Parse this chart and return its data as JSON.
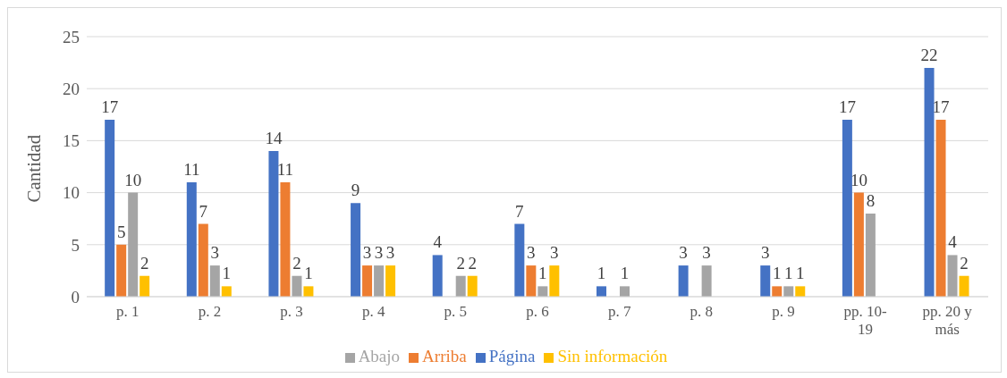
{
  "chart_data": {
    "type": "bar",
    "ylabel": "Cantidad",
    "categories": [
      "p. 1",
      "p. 2",
      "p. 3",
      "p. 4",
      "p. 5",
      "p. 6",
      "p. 7",
      "p. 8",
      "p. 9",
      "pp. 10-19",
      "pp. 20 y más"
    ],
    "series": [
      {
        "name": "Página",
        "color": "#4472c4",
        "values": [
          17,
          11,
          14,
          9,
          4,
          7,
          1,
          3,
          3,
          17,
          22
        ]
      },
      {
        "name": "Arriba",
        "color": "#ed7d31",
        "values": [
          5,
          7,
          11,
          3,
          null,
          3,
          null,
          null,
          1,
          10,
          17
        ]
      },
      {
        "name": "Abajo",
        "color": "#a5a5a5",
        "values": [
          10,
          3,
          2,
          3,
          2,
          1,
          1,
          3,
          1,
          8,
          4
        ]
      },
      {
        "name": "Sin información",
        "color": "#ffc000",
        "values": [
          2,
          1,
          1,
          3,
          2,
          3,
          null,
          null,
          1,
          null,
          2
        ]
      }
    ],
    "ylim": [
      0,
      25
    ],
    "yticks": [
      0,
      5,
      10,
      15,
      20,
      25
    ],
    "grid": "y",
    "legend": "bottom",
    "data_labels": true
  }
}
